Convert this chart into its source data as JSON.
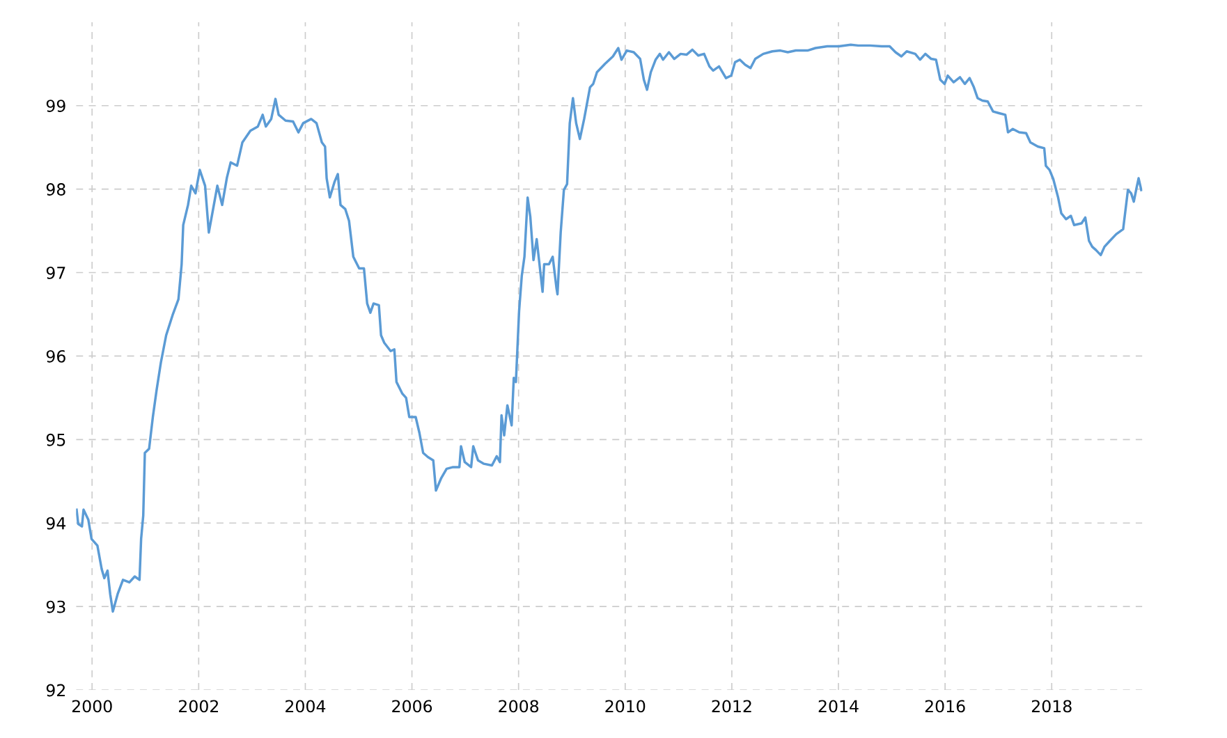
{
  "chart_data": {
    "type": "line",
    "x": [
      1999.71,
      1999.74,
      1999.81,
      1999.84,
      1999.93,
      1999.99,
      2000.1,
      2000.18,
      2000.23,
      2000.29,
      2000.34,
      2000.39,
      2000.48,
      2000.58,
      2000.7,
      2000.8,
      2000.89,
      2000.92,
      2000.96,
      2000.99,
      2001.07,
      2001.14,
      2001.21,
      2001.29,
      2001.39,
      2001.51,
      2001.62,
      2001.68,
      2001.71,
      2001.8,
      2001.86,
      2001.94,
      2002.02,
      2002.12,
      2002.19,
      2002.27,
      2002.35,
      2002.44,
      2002.53,
      2002.6,
      2002.72,
      2002.82,
      2002.97,
      2003.11,
      2003.2,
      2003.26,
      2003.36,
      2003.44,
      2003.5,
      2003.63,
      2003.77,
      2003.87,
      2003.96,
      2004.11,
      2004.21,
      2004.31,
      2004.37,
      2004.4,
      2004.46,
      2004.55,
      2004.61,
      2004.66,
      2004.75,
      2004.82,
      2004.9,
      2005.01,
      2005.1,
      2005.16,
      2005.22,
      2005.28,
      2005.38,
      2005.42,
      2005.48,
      2005.6,
      2005.67,
      2005.71,
      2005.82,
      2005.89,
      2005.95,
      2006.07,
      2006.14,
      2006.21,
      2006.3,
      2006.4,
      2006.45,
      2006.55,
      2006.65,
      2006.77,
      2006.89,
      2006.92,
      2006.99,
      2007.11,
      2007.15,
      2007.24,
      2007.35,
      2007.5,
      2007.59,
      2007.65,
      2007.68,
      2007.73,
      2007.79,
      2007.87,
      2007.91,
      2007.95,
      2008.01,
      2008.06,
      2008.11,
      2008.17,
      2008.22,
      2008.28,
      2008.34,
      2008.45,
      2008.48,
      2008.57,
      2008.64,
      2008.71,
      2008.73,
      2008.79,
      2008.85,
      2008.91,
      2008.96,
      2009.02,
      2009.08,
      2009.15,
      2009.23,
      2009.34,
      2009.4,
      2009.47,
      2009.62,
      2009.77,
      2009.87,
      2009.93,
      2010.03,
      2010.16,
      2010.28,
      2010.35,
      2010.41,
      2010.48,
      2010.57,
      2010.65,
      2010.71,
      2010.82,
      2010.92,
      2011.04,
      2011.15,
      2011.26,
      2011.37,
      2011.48,
      2011.58,
      2011.65,
      2011.76,
      2011.89,
      2011.99,
      2012.06,
      2012.15,
      2012.25,
      2012.35,
      2012.44,
      2012.59,
      2012.76,
      2012.91,
      2013.05,
      2013.2,
      2013.42,
      2013.57,
      2013.79,
      2014.01,
      2014.23,
      2014.37,
      2014.59,
      2014.81,
      2014.96,
      2015.07,
      2015.18,
      2015.28,
      2015.44,
      2015.53,
      2015.63,
      2015.74,
      2015.83,
      2015.91,
      2015.99,
      2016.05,
      2016.16,
      2016.28,
      2016.37,
      2016.46,
      2016.54,
      2016.61,
      2016.7,
      2016.8,
      2016.9,
      2017.01,
      2017.13,
      2017.18,
      2017.27,
      2017.39,
      2017.52,
      2017.6,
      2017.74,
      2017.86,
      2017.89,
      2017.96,
      2018.03,
      2018.12,
      2018.18,
      2018.27,
      2018.36,
      2018.42,
      2018.56,
      2018.63,
      2018.7,
      2018.76,
      2018.83,
      2018.92,
      2018.99,
      2019.09,
      2019.21,
      2019.34,
      2019.43,
      2019.49,
      2019.54,
      2019.59,
      2019.63,
      2019.68
    ],
    "series": [
      {
        "color": "#5b9bd5",
        "values": [
          94.16,
          93.99,
          93.96,
          94.16,
          94.04,
          93.81,
          93.73,
          93.45,
          93.34,
          93.43,
          93.15,
          92.94,
          93.15,
          93.32,
          93.29,
          93.36,
          93.32,
          93.81,
          94.09,
          94.84,
          94.89,
          95.27,
          95.59,
          95.92,
          96.25,
          96.49,
          96.68,
          97.1,
          97.57,
          97.81,
          98.04,
          97.95,
          98.23,
          98.04,
          97.48,
          97.76,
          98.04,
          97.81,
          98.14,
          98.32,
          98.28,
          98.56,
          98.7,
          98.75,
          98.89,
          98.75,
          98.84,
          99.08,
          98.89,
          98.82,
          98.81,
          98.68,
          98.79,
          98.84,
          98.79,
          98.56,
          98.51,
          98.13,
          97.9,
          98.09,
          98.18,
          97.81,
          97.76,
          97.62,
          97.19,
          97.05,
          97.05,
          96.63,
          96.52,
          96.63,
          96.61,
          96.25,
          96.16,
          96.06,
          96.08,
          95.69,
          95.55,
          95.5,
          95.27,
          95.27,
          95.08,
          94.84,
          94.79,
          94.75,
          94.39,
          94.54,
          94.65,
          94.67,
          94.67,
          94.92,
          94.73,
          94.67,
          94.92,
          94.75,
          94.71,
          94.69,
          94.8,
          94.73,
          95.29,
          95.05,
          95.41,
          95.17,
          95.74,
          95.69,
          96.54,
          96.96,
          97.19,
          97.9,
          97.67,
          97.15,
          97.4,
          96.77,
          97.1,
          97.1,
          97.19,
          96.82,
          96.74,
          97.48,
          97.99,
          98.06,
          98.79,
          99.09,
          98.79,
          98.6,
          98.84,
          99.22,
          99.26,
          99.4,
          99.5,
          99.59,
          99.69,
          99.55,
          99.66,
          99.64,
          99.56,
          99.31,
          99.19,
          99.4,
          99.55,
          99.62,
          99.55,
          99.64,
          99.56,
          99.62,
          99.61,
          99.67,
          99.6,
          99.62,
          99.47,
          99.42,
          99.47,
          99.33,
          99.36,
          99.52,
          99.55,
          99.49,
          99.45,
          99.56,
          99.62,
          99.65,
          99.66,
          99.64,
          99.66,
          99.66,
          99.69,
          99.71,
          99.71,
          99.73,
          99.72,
          99.72,
          99.71,
          99.71,
          99.64,
          99.59,
          99.65,
          99.62,
          99.55,
          99.62,
          99.56,
          99.55,
          99.31,
          99.26,
          99.36,
          99.28,
          99.34,
          99.26,
          99.33,
          99.22,
          99.09,
          99.06,
          99.05,
          98.93,
          98.91,
          98.89,
          98.68,
          98.72,
          98.68,
          98.67,
          98.56,
          98.51,
          98.49,
          98.28,
          98.23,
          98.12,
          97.9,
          97.71,
          97.64,
          97.68,
          97.57,
          97.59,
          97.66,
          97.38,
          97.31,
          97.27,
          97.21,
          97.31,
          97.38,
          97.46,
          97.52,
          97.99,
          97.95,
          97.85,
          98.01,
          98.13,
          97.99
        ]
      }
    ],
    "xlim": [
      1999.7,
      2019.7
    ],
    "xticks": [
      2000,
      2002,
      2004,
      2006,
      2008,
      2010,
      2012,
      2014,
      2016,
      2018
    ],
    "ylim": [
      92,
      100
    ],
    "yticks": [
      92,
      93,
      94,
      95,
      96,
      97,
      98,
      99
    ],
    "grid": true,
    "line_style": "solid",
    "marker": "none"
  }
}
